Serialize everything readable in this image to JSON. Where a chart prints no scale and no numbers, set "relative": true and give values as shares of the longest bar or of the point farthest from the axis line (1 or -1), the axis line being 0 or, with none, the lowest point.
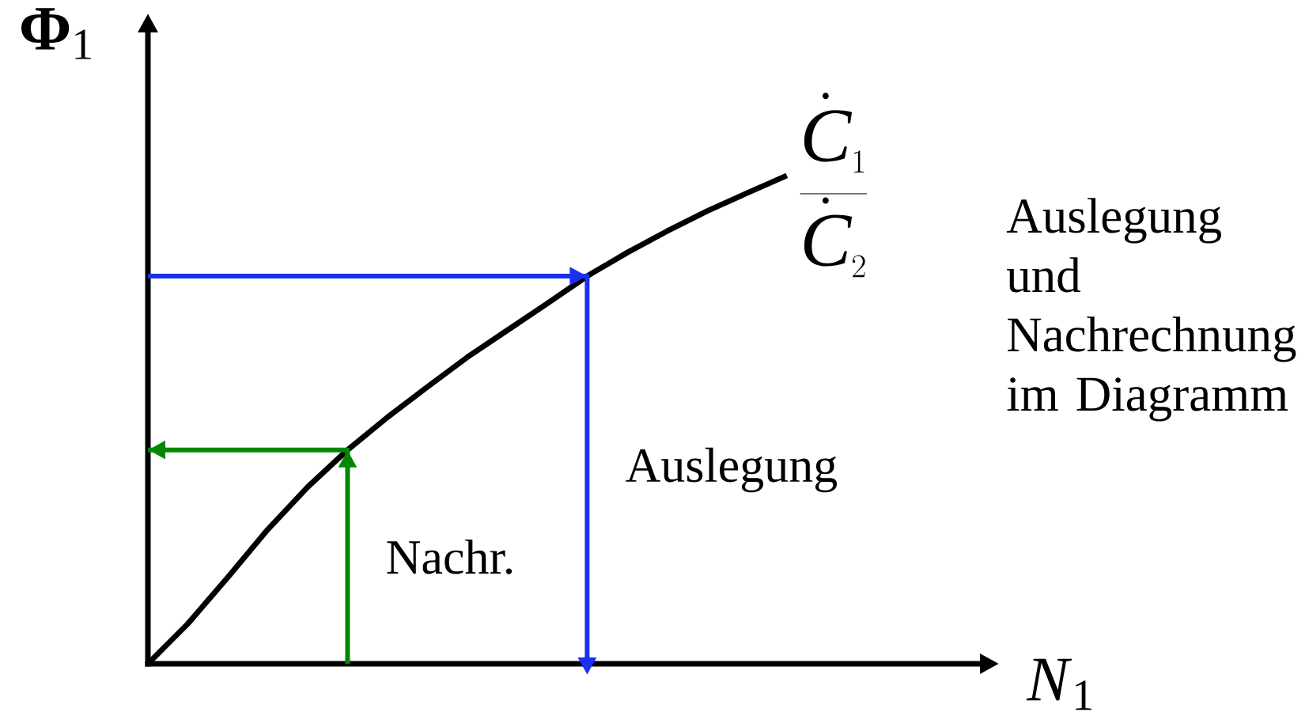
{
  "chart_data": {
    "type": "line",
    "relative": true,
    "xlabel": "*N*$_{1}$",
    "ylabel": "**Φ**$_{1}$",
    "legend": false,
    "marker": "none",
    "categories": [
      null,
      null,
      null,
      null,
      null,
      null,
      null,
      null,
      null,
      null,
      null,
      null,
      null,
      null,
      null,
      null,
      null
    ],
    "series": [
      {
        "name": "\\frac{\\dot{C}_{1}}{\\dot{C}_{2}}",
        "color": "#000000",
        "values": [
          0,
          0.082,
          0.177,
          0.275,
          0.362,
          0.438,
          0.505,
          0.567,
          0.628,
          0.683,
          0.738,
          0.794,
          0.842,
          0.886,
          0.927,
          0.964,
          1
        ]
      }
    ],
    "ref_lines": [
      {
        "axis": "y",
        "value": 0.794,
        "label": "Auslegung",
        "color": "#1a30f0"
      },
      {
        "axis": "y",
        "value": 0.438,
        "label": "Nachr.",
        "color": "#008800"
      }
    ],
    "annotations": [
      "Auslegung und Nachrechnung im Diagramm"
    ]
  }
}
